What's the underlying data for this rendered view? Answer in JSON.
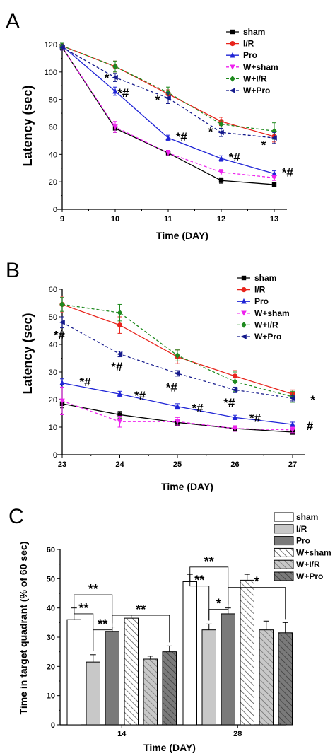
{
  "colors": {
    "sham": "#000000",
    "I/R": "#e8241c",
    "Pro": "#1f24d6",
    "W+sham": "#ee22ee",
    "W+I/R": "#1f8a1f",
    "W+Pro": "#151a8c"
  },
  "chart_data": [
    {
      "panel": "A",
      "type": "line",
      "xlabel": "Time (DAY)",
      "ylabel": "Latency (sec)",
      "x": [
        9,
        10,
        11,
        12,
        13
      ],
      "xlim": [
        9,
        13
      ],
      "ylim": [
        0,
        120
      ],
      "yticks": [
        0,
        20,
        40,
        60,
        80,
        100,
        120
      ],
      "legend": "top-right",
      "series": [
        {
          "name": "sham",
          "marker": "square",
          "dashed": false,
          "values": [
            118,
            59,
            41,
            21,
            18
          ],
          "errors": [
            2,
            3,
            2,
            2,
            1
          ]
        },
        {
          "name": "I/R",
          "marker": "circle",
          "dashed": false,
          "values": [
            119,
            104,
            84,
            64,
            53
          ],
          "errors": [
            2,
            4,
            3,
            3,
            4
          ]
        },
        {
          "name": "Pro",
          "marker": "tri-up",
          "dashed": false,
          "values": [
            119,
            86,
            52,
            37,
            26
          ],
          "errors": [
            2,
            3,
            2,
            2,
            2
          ]
        },
        {
          "name": "W+sham",
          "marker": "tri-down",
          "dashed": true,
          "values": [
            118,
            60,
            41,
            27,
            23
          ],
          "errors": [
            2,
            4,
            2,
            2,
            2
          ]
        },
        {
          "name": "W+I/R",
          "marker": "diamond",
          "dashed": true,
          "values": [
            119,
            104,
            85,
            62,
            57
          ],
          "errors": [
            2,
            4,
            4,
            3,
            6
          ]
        },
        {
          "name": "W+Pro",
          "marker": "tri-left",
          "dashed": true,
          "values": [
            118,
            96,
            81,
            56,
            52
          ],
          "errors": [
            2,
            3,
            4,
            3,
            4
          ]
        }
      ],
      "annotations": [
        {
          "text": "*",
          "x": 9.84,
          "y": 96
        },
        {
          "text": "*#",
          "x": 10.15,
          "y": 85
        },
        {
          "text": "*",
          "x": 10.8,
          "y": 80
        },
        {
          "text": "*#",
          "x": 11.25,
          "y": 53
        },
        {
          "text": "*",
          "x": 11.8,
          "y": 57
        },
        {
          "text": "*#",
          "x": 12.25,
          "y": 38
        },
        {
          "text": "*",
          "x": 12.8,
          "y": 47
        },
        {
          "text": "*#",
          "x": 13.25,
          "y": 27
        }
      ]
    },
    {
      "panel": "B",
      "type": "line",
      "xlabel": "Time (DAY)",
      "ylabel": "Latency (sec)",
      "x": [
        23,
        24,
        25,
        26,
        27
      ],
      "xlim": [
        23,
        27
      ],
      "ylim": [
        0,
        60
      ],
      "yticks": [
        0,
        10,
        20,
        30,
        40,
        50,
        60
      ],
      "legend": "top-right",
      "series": [
        {
          "name": "sham",
          "marker": "square",
          "dashed": false,
          "values": [
            18.5,
            14.5,
            11.7,
            9.5,
            8.2
          ],
          "errors": [
            1.5,
            1.2,
            1,
            1,
            0.8
          ]
        },
        {
          "name": "I/R",
          "marker": "circle",
          "dashed": false,
          "values": [
            54.5,
            47,
            35.5,
            28.5,
            22
          ],
          "errors": [
            3,
            3,
            2.5,
            2,
            1.5
          ]
        },
        {
          "name": "Pro",
          "marker": "tri-up",
          "dashed": false,
          "values": [
            26,
            22,
            17.5,
            13.5,
            11
          ],
          "errors": [
            1.5,
            1,
            1,
            0.8,
            0.8
          ]
        },
        {
          "name": "W+sham",
          "marker": "tri-down",
          "dashed": true,
          "values": [
            19.5,
            12,
            12,
            9.5,
            9
          ],
          "errors": [
            5,
            2,
            1.5,
            1,
            1
          ]
        },
        {
          "name": "W+I/R",
          "marker": "diamond",
          "dashed": true,
          "values": [
            54.5,
            51.5,
            36,
            26.5,
            21
          ],
          "errors": [
            2.5,
            3,
            2,
            3.5,
            2
          ]
        },
        {
          "name": "W+Pro",
          "marker": "tri-left",
          "dashed": true,
          "values": [
            48,
            36.5,
            29.5,
            23.5,
            20.5
          ],
          "errors": [
            2,
            1,
            1,
            1,
            1
          ]
        }
      ],
      "annotations": [
        {
          "text": "*#",
          "x": 22.95,
          "y": 43.5
        },
        {
          "text": "*#",
          "x": 23.4,
          "y": 26.5
        },
        {
          "text": "*#",
          "x": 23.95,
          "y": 32
        },
        {
          "text": "*#",
          "x": 24.35,
          "y": 21.5
        },
        {
          "text": "*#",
          "x": 24.9,
          "y": 24.5
        },
        {
          "text": "*#",
          "x": 25.35,
          "y": 17
        },
        {
          "text": "*#",
          "x": 25.9,
          "y": 19
        },
        {
          "text": "*#",
          "x": 26.35,
          "y": 13.5
        },
        {
          "text": "#",
          "x": 27.3,
          "y": 10.5
        },
        {
          "text": "*",
          "x": 27.35,
          "y": 20
        }
      ]
    },
    {
      "panel": "C",
      "type": "bar",
      "xlabel": "Time (DAY)",
      "ylabel": "Time in target quadrant (% of 60 sec)",
      "categories": [
        "14",
        "28"
      ],
      "ylim": [
        0,
        60
      ],
      "yticks": [
        0,
        10,
        20,
        30,
        40,
        50,
        60
      ],
      "legend": "top-right",
      "series": [
        {
          "name": "sham",
          "pattern": "white",
          "values": [
            36,
            49
          ],
          "errors": [
            4,
            2.5
          ]
        },
        {
          "name": "I/R",
          "pattern": "light-gray",
          "values": [
            21.5,
            32.5
          ],
          "errors": [
            2.5,
            2
          ]
        },
        {
          "name": "Pro",
          "pattern": "dark-gray",
          "values": [
            32,
            38
          ],
          "errors": [
            1.5,
            2
          ]
        },
        {
          "name": "W+sham",
          "pattern": "hatch-white",
          "values": [
            36.5,
            49.5
          ],
          "errors": [
            1,
            2
          ]
        },
        {
          "name": "W+I/R",
          "pattern": "hatch-light",
          "values": [
            22.5,
            32.5
          ],
          "errors": [
            1,
            3
          ]
        },
        {
          "name": "W+Pro",
          "pattern": "hatch-dark",
          "values": [
            25,
            31.5
          ],
          "errors": [
            2,
            3.5
          ]
        }
      ],
      "significance": [
        {
          "category": 0,
          "from": 0,
          "to": 2,
          "label": "**",
          "level": 44.5
        },
        {
          "category": 0,
          "from": 0,
          "to": 1,
          "label": "**",
          "level": 38
        },
        {
          "category": 0,
          "from": 1,
          "to": 2,
          "label": "**",
          "level": 32.5
        },
        {
          "category": 0,
          "from": 2,
          "to": 5,
          "label": "**",
          "level": 37.5
        },
        {
          "category": 1,
          "from": 0,
          "to": 2,
          "label": "**",
          "level": 54
        },
        {
          "category": 1,
          "from": 0,
          "to": 1,
          "label": "**",
          "level": 47.5
        },
        {
          "category": 1,
          "from": 1,
          "to": 2,
          "label": "*",
          "level": 39.5
        },
        {
          "category": 1,
          "from": 2,
          "to": 5,
          "label": "*",
          "level": 47
        }
      ]
    }
  ]
}
